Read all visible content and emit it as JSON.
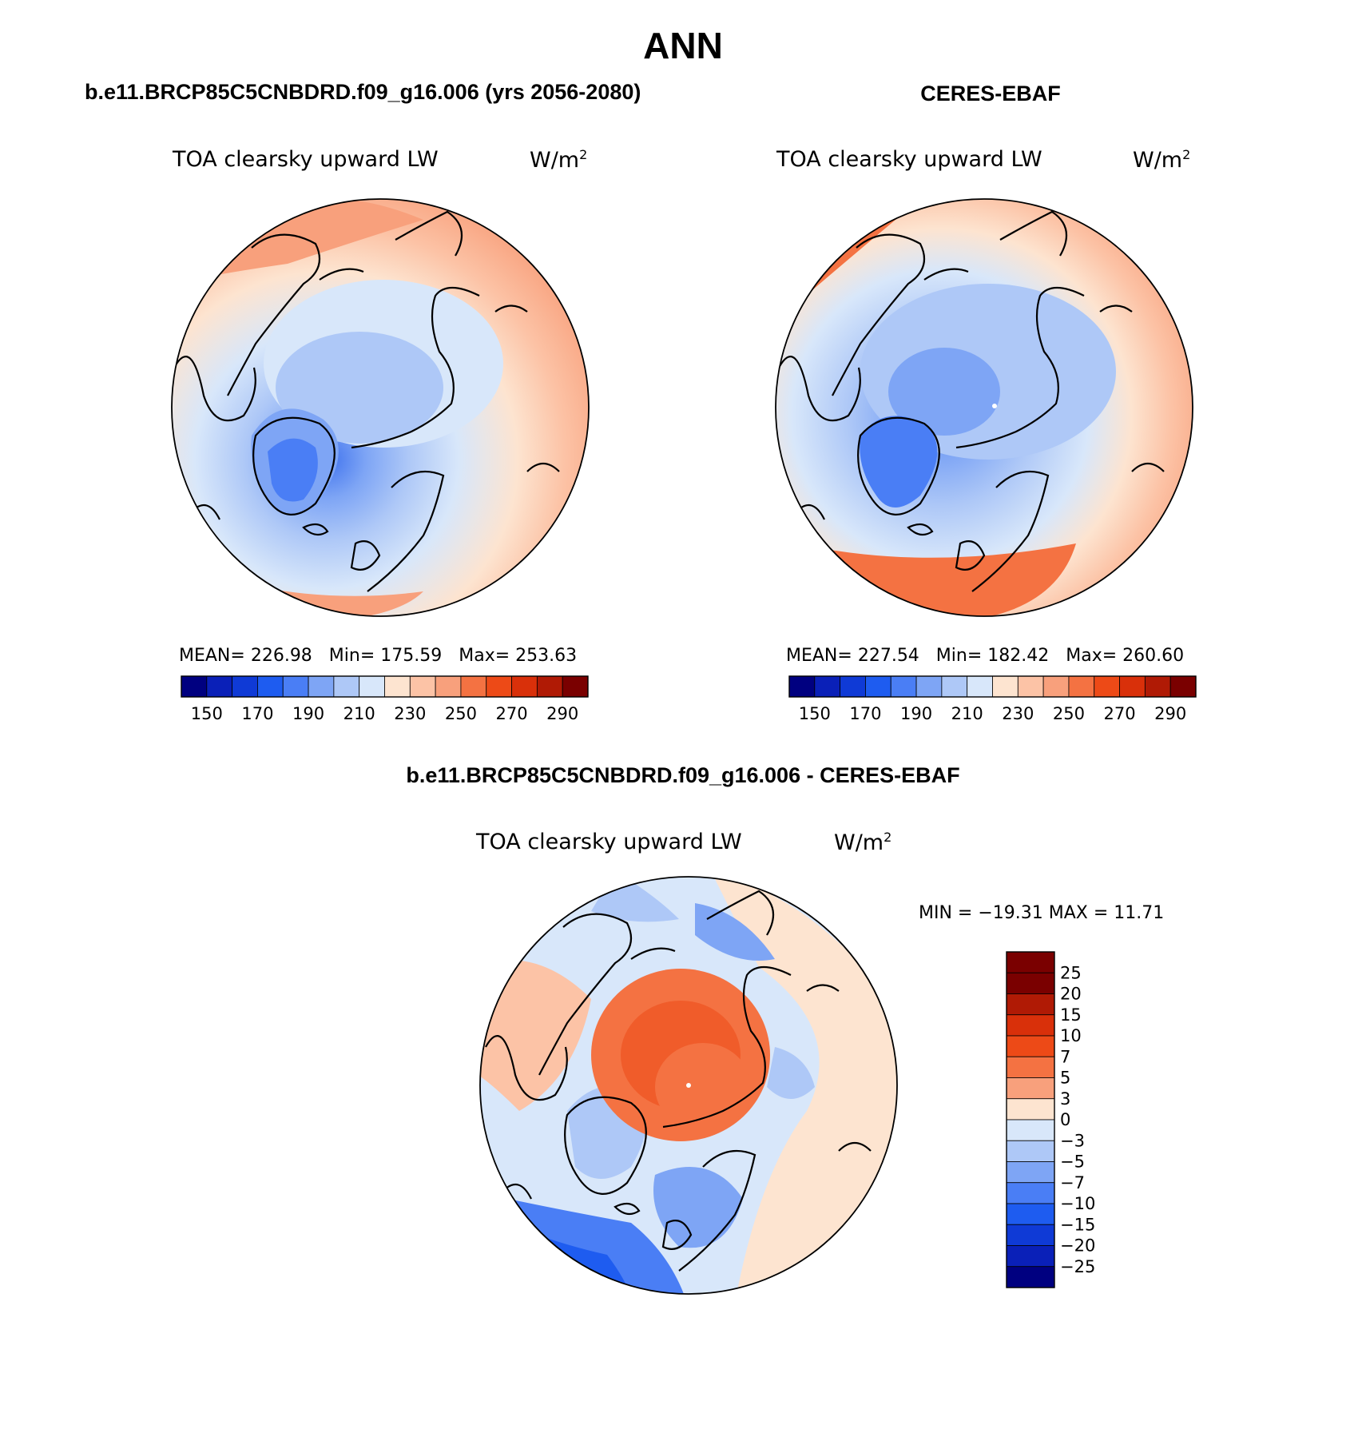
{
  "page_title": "ANN",
  "colors": {
    "pos_scale": [
      "#000080",
      "#0a20b8",
      "#0f3ad6",
      "#1e5cf0",
      "#4a7ef5",
      "#7ea5f5",
      "#aec8f7",
      "#d8e7fa",
      "#fde4d0",
      "#fcc3a6",
      "#f8a07c",
      "#f47242",
      "#ed4a17",
      "#d9300a",
      "#b01a05",
      "#7a0000"
    ],
    "diff_scale": [
      "#7a0000",
      "#b01a05",
      "#d9300a",
      "#ed4a17",
      "#f47242",
      "#f8a07c",
      "#fde4d0",
      "#d8e7fa",
      "#aec8f7",
      "#7ea5f5",
      "#4a7ef5",
      "#1e5cf0",
      "#0f3ad6",
      "#0a20b8",
      "#000080"
    ]
  },
  "panels": [
    {
      "header": "b.e11.BRCP85C5CNBDRD.f09_g16.006 (yrs 2056-2080)",
      "field_label": "TOA clearsky upward LW",
      "units": "W/m",
      "units_exp": "2",
      "stats": {
        "mean_label": "MEAN=",
        "mean": "226.98",
        "min_label": "Min=",
        "min": "175.59",
        "max_label": "Max=",
        "max": "253.63"
      },
      "colorbar_ticks": [
        "150",
        "170",
        "190",
        "210",
        "230",
        "250",
        "270",
        "290"
      ]
    },
    {
      "header": "CERES-EBAF",
      "field_label": "TOA clearsky upward LW",
      "units": "W/m",
      "units_exp": "2",
      "stats": {
        "mean_label": "MEAN=",
        "mean": "227.54",
        "min_label": "Min=",
        "min": "182.42",
        "max_label": "Max=",
        "max": "260.60"
      },
      "colorbar_ticks": [
        "150",
        "170",
        "190",
        "210",
        "230",
        "250",
        "270",
        "290"
      ]
    }
  ],
  "diff_panel": {
    "header": "b.e11.BRCP85C5CNBDRD.f09_g16.006 - CERES-EBAF",
    "field_label": "TOA clearsky upward LW",
    "units": "W/m",
    "units_exp": "2",
    "min_max_text": "MIN = −19.31 MAX =   11.71",
    "colorbar_ticks": [
      "25",
      "20",
      "15",
      "10",
      "7",
      "5",
      "3",
      "0",
      "−3",
      "−5",
      "−7",
      "−10",
      "−15",
      "−20",
      "−25"
    ]
  }
}
